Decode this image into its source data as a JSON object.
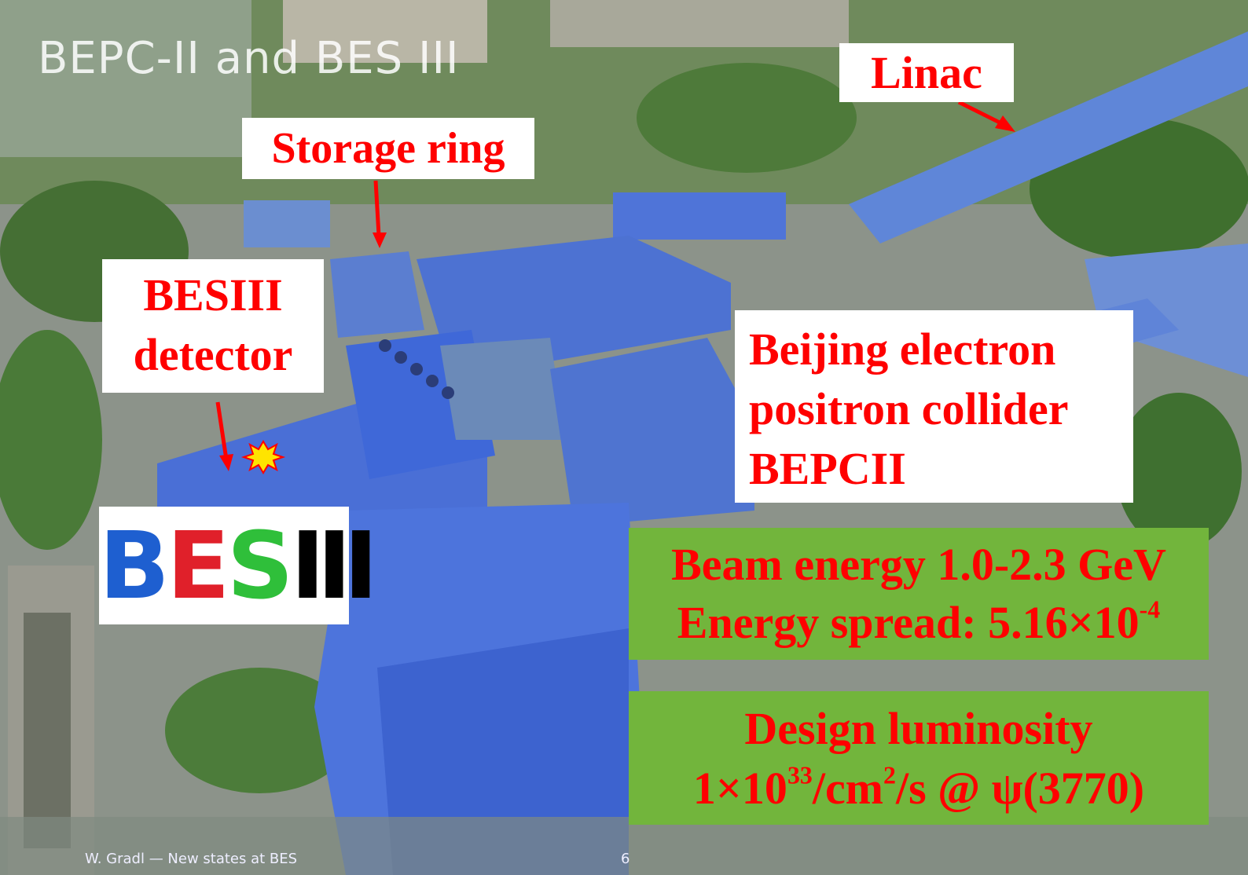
{
  "title": "BEPC-II and BES III",
  "labels": {
    "linac": "Linac",
    "storage_ring": "Storage ring",
    "besiii": [
      "BESIII",
      "detector"
    ],
    "collider": [
      "Beijing electron",
      "positron collider",
      "BEPCII"
    ]
  },
  "beam_box": {
    "line1": "Beam energy 1.0-2.3 GeV",
    "line2": "Energy spread: 5.16×10",
    "line2_sup": "-4"
  },
  "luminosity_box": {
    "line1": "Design luminosity",
    "line2": [
      "1×10",
      "33",
      "/cm",
      "2",
      "/s @ ψ(3770)"
    ]
  },
  "logo": [
    "B",
    "E",
    "S",
    "Ⅲ"
  ],
  "footer": {
    "text": "W. Gradl — New states at BES",
    "page": "6"
  }
}
